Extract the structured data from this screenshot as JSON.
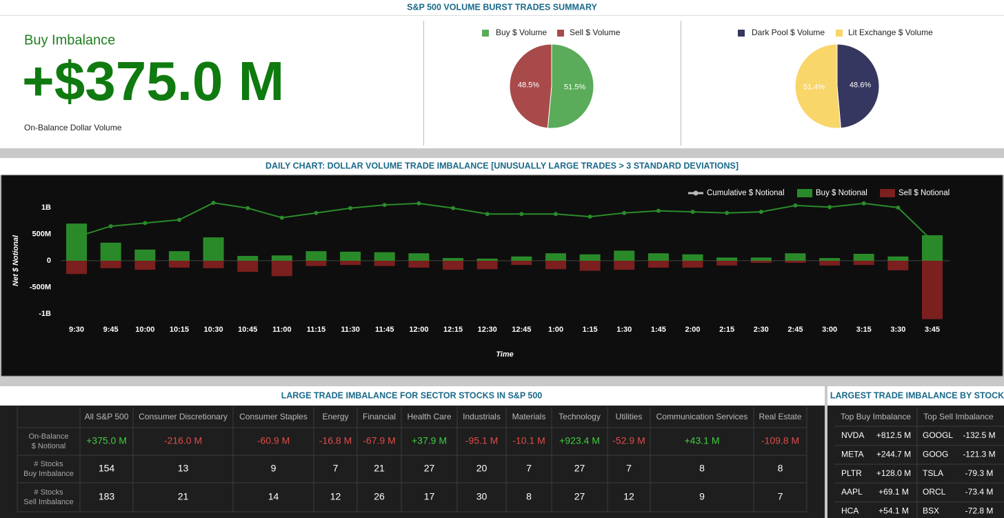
{
  "header": {
    "title": "S&P 500 VOLUME BURST TRADES SUMMARY"
  },
  "summary": {
    "label": "Buy Imbalance",
    "value": "+$375.0 M",
    "caption": "On-Balance Dollar Volume"
  },
  "chart_data": [
    {
      "type": "pie",
      "categories": [
        "Buy $ Volume",
        "Sell $ Volume"
      ],
      "values": [
        51.5,
        48.5
      ],
      "value_labels": [
        "51.5%",
        "48.5%"
      ],
      "colors": [
        "#5aab5a",
        "#a84a4a"
      ]
    },
    {
      "type": "pie",
      "categories": [
        "Dark Pool $ Volume",
        "Lit Exchange $ Volume"
      ],
      "values": [
        48.6,
        51.4
      ],
      "value_labels": [
        "48.6%",
        "51.4%"
      ],
      "colors": [
        "#363760",
        "#f9d66a"
      ]
    },
    {
      "type": "combo",
      "title": "DAILY CHART: DOLLAR VOLUME TRADE IMBALANCE [UNUSUALLY LARGE TRADES > 3 STANDARD DEVIATIONS]",
      "x_label": "Time",
      "y_label": "Net $ Notional",
      "categories": [
        "9:30",
        "9:45",
        "10:00",
        "10:15",
        "10:30",
        "10:45",
        "11:00",
        "11:15",
        "11:30",
        "11:45",
        "12:00",
        "12:15",
        "12:30",
        "12:45",
        "1:00",
        "1:15",
        "1:30",
        "1:45",
        "2:00",
        "2:15",
        "2:30",
        "2:45",
        "3:00",
        "3:15",
        "3:30",
        "3:45"
      ],
      "series": [
        {
          "name": "Cumulative $ Notional",
          "kind": "line",
          "color": "#2a8c2a",
          "values": [
            450000000,
            650000000,
            710000000,
            770000000,
            1090000000,
            990000000,
            810000000,
            900000000,
            990000000,
            1050000000,
            1080000000,
            990000000,
            880000000,
            880000000,
            880000000,
            830000000,
            900000000,
            940000000,
            920000000,
            900000000,
            920000000,
            1040000000,
            1010000000,
            1080000000,
            1000000000,
            375000000
          ]
        },
        {
          "name": "Buy $ Notional",
          "kind": "bar",
          "color": "#2a8a2a",
          "values": [
            700000000,
            340000000,
            210000000,
            180000000,
            440000000,
            90000000,
            100000000,
            180000000,
            170000000,
            160000000,
            140000000,
            50000000,
            40000000,
            80000000,
            140000000,
            120000000,
            190000000,
            140000000,
            120000000,
            60000000,
            60000000,
            140000000,
            50000000,
            130000000,
            80000000,
            480000000
          ]
        },
        {
          "name": "Sell $ Notional",
          "kind": "bar",
          "color": "#7c1f1f",
          "values": [
            -250000000,
            -140000000,
            -170000000,
            -130000000,
            -140000000,
            -210000000,
            -290000000,
            -100000000,
            -80000000,
            -100000000,
            -130000000,
            -170000000,
            -160000000,
            -80000000,
            -160000000,
            -190000000,
            -170000000,
            -130000000,
            -130000000,
            -90000000,
            -40000000,
            -40000000,
            -90000000,
            -80000000,
            -180000000,
            -1100000000
          ]
        }
      ],
      "ylim": [
        -1200000000,
        1200000000
      ],
      "yticks": [
        {
          "value": 1000000000,
          "label": "1B"
        },
        {
          "value": 500000000,
          "label": "500M"
        },
        0,
        {
          "value": -500000000,
          "label": "-500M"
        },
        {
          "value": -1000000000,
          "label": "-1B"
        }
      ]
    }
  ],
  "sector_table": {
    "title": "LARGE TRADE IMBALANCE FOR SECTOR STOCKS IN S&P 500",
    "columns": [
      "All S&P 500",
      "Consumer Discretionary",
      "Consumer Staples",
      "Energy",
      "Financial",
      "Health Care",
      "Industrials",
      "Materials",
      "Technology",
      "Utilities",
      "Communication Services",
      "Real Estate"
    ],
    "rows": [
      {
        "label": [
          "On-Balance",
          "$ Notional"
        ],
        "cells": [
          "+375.0 M",
          "-216.0 M",
          "-60.9 M",
          "-16.8 M",
          "-67.9 M",
          "+37.9 M",
          "-95.1 M",
          "-10.1 M",
          "+923.4 M",
          "-52.9 M",
          "+43.1 M",
          "-109.8 M"
        ]
      },
      {
        "label": [
          "# Stocks",
          "Buy Imbalance"
        ],
        "cells": [
          154,
          13,
          9,
          7,
          21,
          27,
          20,
          7,
          27,
          7,
          8,
          8
        ]
      },
      {
        "label": [
          "# Stocks",
          "Sell Imbalance"
        ],
        "cells": [
          183,
          21,
          14,
          12,
          26,
          17,
          30,
          8,
          27,
          12,
          9,
          7
        ]
      }
    ]
  },
  "stock_table": {
    "title": "LARGEST TRADE IMBALANCE BY STOCK",
    "columns": [
      "Top Buy Imbalance",
      "Top Sell Imbalance"
    ],
    "rows": [
      [
        "NVDA",
        "+812.5 M",
        "GOOGL",
        "-132.5 M"
      ],
      [
        "META",
        "+244.7 M",
        "GOOG",
        "-121.3 M"
      ],
      [
        "PLTR",
        "+128.0 M",
        "TSLA",
        "-79.3 M"
      ],
      [
        "AAPL",
        "+69.1 M",
        "ORCL",
        "-73.4 M"
      ],
      [
        "HCA",
        "+54.1 M",
        "BSX",
        "-72.8 M"
      ]
    ]
  }
}
